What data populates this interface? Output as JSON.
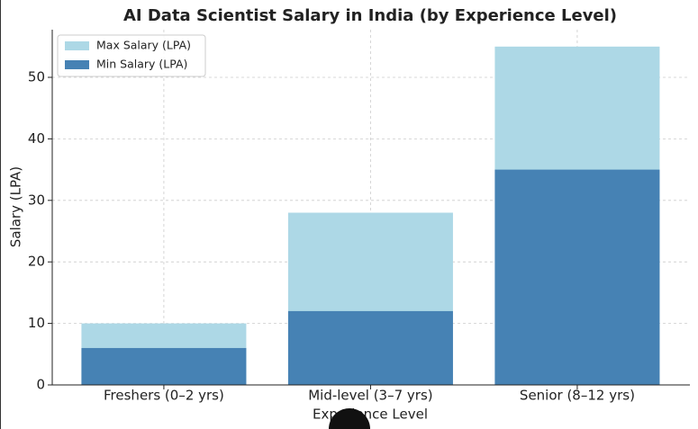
{
  "chart_data": {
    "type": "bar",
    "title": "AI Data Scientist Salary in India (by Experience Level)",
    "xlabel": "Experience Level",
    "ylabel": "Salary (LPA)",
    "categories": [
      "Freshers (0–2 yrs)",
      "Mid-level (3–7 yrs)",
      "Senior (8–12 yrs)"
    ],
    "series": [
      {
        "name": "Max Salary (LPA)",
        "color": "#add8e6",
        "values": [
          10,
          28,
          55
        ]
      },
      {
        "name": "Min Salary (LPA)",
        "color": "#4682b4",
        "values": [
          6,
          12,
          35
        ]
      }
    ],
    "ylim": [
      0,
      57.75
    ],
    "yticks": [
      0,
      10,
      20,
      30,
      40,
      50
    ],
    "grid": true,
    "legend": "upper left"
  }
}
